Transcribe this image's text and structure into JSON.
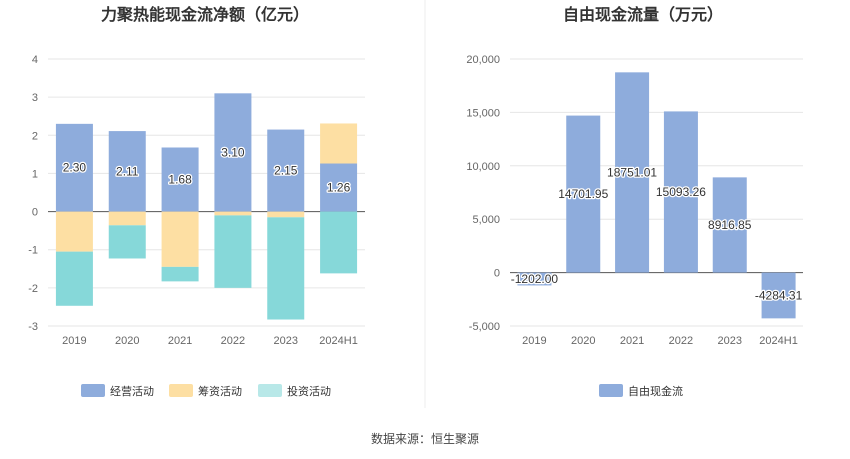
{
  "source": "数据来源：恒生聚源",
  "colors": {
    "operating": "#8eacdc",
    "financing": "#fddfa3",
    "investing": "#86d8d9",
    "investing_legend": "#b8e8e8",
    "fcf": "#8eacdc"
  },
  "chart_data": [
    {
      "type": "bar",
      "stacked": true,
      "title": "力聚热能现金流净额（亿元）",
      "categories": [
        "2019",
        "2020",
        "2021",
        "2022",
        "2023",
        "2024H1"
      ],
      "ylim": [
        -3,
        4
      ],
      "yticks": [
        "4",
        "3",
        "2",
        "1",
        "0",
        "-1",
        "-2",
        "-3"
      ],
      "grid": true,
      "legend_position": "bottom",
      "series": [
        {
          "name": "经营活动",
          "values": [
            2.3,
            2.11,
            1.68,
            3.1,
            2.15,
            1.26
          ],
          "labels": [
            "2.30",
            "2.11",
            "1.68",
            "3.10",
            "2.15",
            "1.26"
          ]
        },
        {
          "name": "筹资活动",
          "values": [
            -1.05,
            -0.36,
            -1.45,
            -0.1,
            -0.15,
            1.05
          ]
        },
        {
          "name": "投资活动",
          "values": [
            -1.42,
            -0.87,
            -0.38,
            -1.9,
            -2.68,
            -1.62
          ]
        }
      ]
    },
    {
      "type": "bar",
      "title": "自由现金流量（万元）",
      "categories": [
        "2019",
        "2020",
        "2021",
        "2022",
        "2023",
        "2024H1"
      ],
      "ylim": [
        -5000,
        20000
      ],
      "yticks": [
        "20,000",
        "15,000",
        "10,000",
        "5,000",
        "0",
        "-5,000"
      ],
      "grid": true,
      "legend_position": "bottom",
      "series": [
        {
          "name": "自由现金流",
          "values": [
            -1202.0,
            14701.95,
            18751.01,
            15093.26,
            8916.85,
            -4284.31
          ],
          "labels": [
            "-1202.00",
            "14701.95",
            "18751.01",
            "15093.26",
            "8916.85",
            "-4284.31"
          ]
        }
      ]
    }
  ]
}
